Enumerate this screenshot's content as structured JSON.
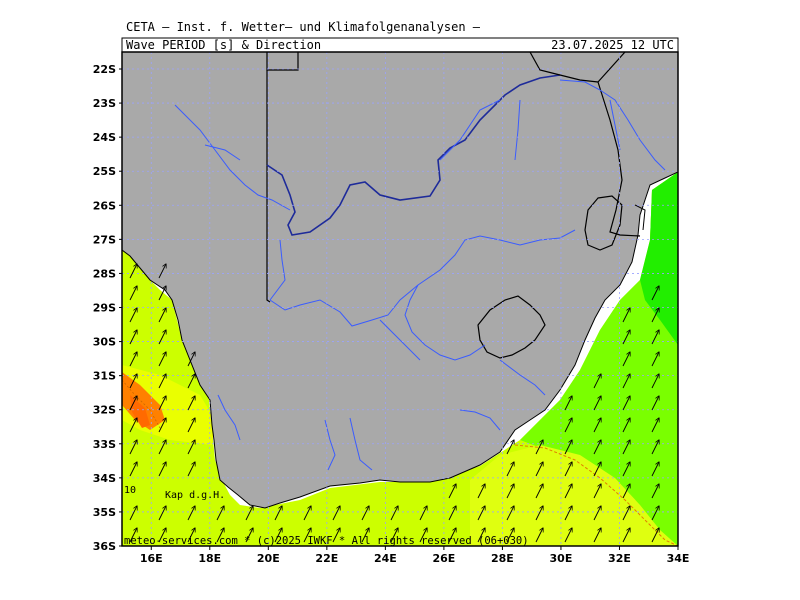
{
  "header": {
    "institute": "CETA — Inst. f. Wetter— und Klimafolgenanalysen —",
    "parameter": "Wave_PERIOD_[s]_&_Direction",
    "datetime": "23.07.2025 12 UTC"
  },
  "map": {
    "lat_labels": [
      "22S",
      "23S",
      "24S",
      "25S",
      "26S",
      "27S",
      "28S",
      "29S",
      "30S",
      "31S",
      "32S",
      "33S",
      "34S",
      "35S",
      "36S"
    ],
    "lon_labels": [
      "16E",
      "18E",
      "20E",
      "22E",
      "24E",
      "26E",
      "28E",
      "30E",
      "32E",
      "34E"
    ],
    "place_label": "Kap d.g.H.",
    "contour_label": "10",
    "footer": "meteo-services.com * (c)2025 IWKF * All rights reserved (06+030)",
    "colors": {
      "land": "#a9a9a9",
      "period_yellow_green": "#ccff00",
      "period_yellow": "#eaff00",
      "period_green": "#7aff00",
      "period_bright_green": "#22ee00",
      "period_orange": "#ff8000",
      "rivers": "#3a5cff",
      "borders": "#000000",
      "grid": "#9aa3ff"
    }
  }
}
